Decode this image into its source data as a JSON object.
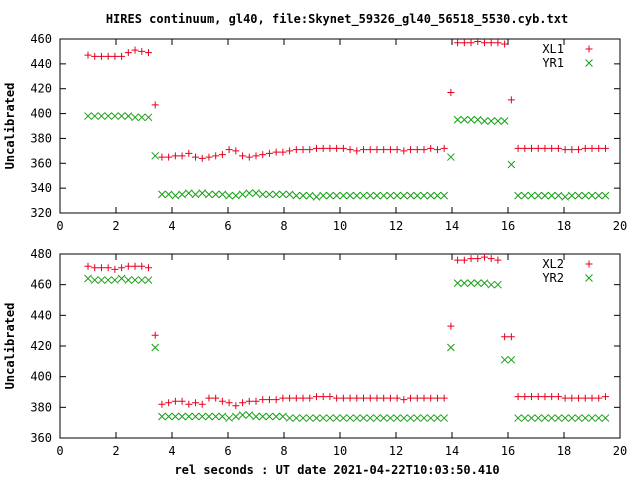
{
  "title": "HIRES continuum, gl40, file:Skynet_59326_gl40_56518_5530.cyb.txt",
  "xlabel": "rel seconds : UT date 2021-04-22T10:03:50.410",
  "colors": {
    "series_plus": "#e8001c",
    "series_cross": "#16a016",
    "axis": "#000000"
  },
  "chart_data": [
    {
      "type": "scatter",
      "ylabel": "Uncalibrated",
      "xlim": [
        0,
        20
      ],
      "ylim": [
        320,
        460
      ],
      "xticks": [
        0,
        2,
        4,
        6,
        8,
        10,
        12,
        14,
        16,
        18,
        20
      ],
      "yticks": [
        320,
        340,
        360,
        380,
        400,
        420,
        440,
        460
      ],
      "legend_position": "top-right",
      "series": [
        {
          "name": "XL1",
          "marker": "plus",
          "x": [
            1.0,
            1.24,
            1.48,
            1.72,
            1.96,
            2.2,
            2.44,
            2.68,
            2.92,
            3.16,
            3.4,
            3.64,
            3.88,
            4.12,
            4.36,
            4.6,
            4.84,
            5.08,
            5.32,
            5.56,
            5.8,
            6.04,
            6.28,
            6.52,
            6.76,
            7.0,
            7.24,
            7.48,
            7.72,
            7.96,
            8.2,
            8.44,
            8.68,
            8.92,
            9.16,
            9.4,
            9.64,
            9.88,
            10.12,
            10.36,
            10.6,
            10.84,
            11.08,
            11.32,
            11.56,
            11.8,
            12.04,
            12.28,
            12.52,
            12.76,
            13.0,
            13.24,
            13.48,
            13.72,
            13.96,
            14.2,
            14.44,
            14.68,
            14.92,
            15.16,
            15.4,
            15.64,
            15.88,
            16.12,
            16.36,
            16.6,
            16.84,
            17.08,
            17.32,
            17.56,
            17.8,
            18.04,
            18.28,
            18.52,
            18.76,
            19.0,
            19.24,
            19.48
          ],
          "y": [
            447,
            446,
            446,
            446,
            446,
            446,
            449,
            451,
            450,
            449,
            407,
            365,
            365,
            366,
            366,
            368,
            365,
            364,
            365,
            366,
            367,
            371,
            370,
            366,
            365,
            366,
            367,
            368,
            369,
            369,
            370,
            371,
            371,
            371,
            372,
            372,
            372,
            372,
            372,
            371,
            370,
            371,
            371,
            371,
            371,
            371,
            371,
            370,
            371,
            371,
            371,
            372,
            371,
            372,
            417,
            457,
            457,
            457,
            458,
            457,
            457,
            457,
            456,
            411,
            372,
            372,
            372,
            372,
            372,
            372,
            372,
            371,
            371,
            371,
            372,
            372,
            372,
            372
          ]
        },
        {
          "name": "YR1",
          "marker": "cross",
          "x": [
            1.0,
            1.24,
            1.48,
            1.72,
            1.96,
            2.2,
            2.44,
            2.68,
            2.92,
            3.16,
            3.4,
            3.64,
            3.88,
            4.12,
            4.36,
            4.6,
            4.84,
            5.08,
            5.32,
            5.56,
            5.8,
            6.04,
            6.28,
            6.52,
            6.76,
            7.0,
            7.24,
            7.48,
            7.72,
            7.96,
            8.2,
            8.44,
            8.68,
            8.92,
            9.16,
            9.4,
            9.64,
            9.88,
            10.12,
            10.36,
            10.6,
            10.84,
            11.08,
            11.32,
            11.56,
            11.8,
            12.04,
            12.28,
            12.52,
            12.76,
            13.0,
            13.24,
            13.48,
            13.72,
            13.96,
            14.2,
            14.44,
            14.68,
            14.92,
            15.16,
            15.4,
            15.64,
            15.88,
            16.12,
            16.36,
            16.6,
            16.84,
            17.08,
            17.32,
            17.56,
            17.8,
            18.04,
            18.28,
            18.52,
            18.76,
            19.0,
            19.24,
            19.48
          ],
          "y": [
            398,
            398,
            398,
            398,
            398,
            398,
            398,
            397,
            397,
            397,
            366,
            335,
            335,
            334,
            335,
            336,
            335,
            336,
            335,
            335,
            335,
            334,
            334,
            335,
            336,
            336,
            335,
            335,
            335,
            335,
            335,
            334,
            334,
            334,
            333,
            334,
            334,
            334,
            334,
            334,
            334,
            334,
            334,
            334,
            334,
            334,
            334,
            334,
            334,
            334,
            334,
            334,
            334,
            334,
            365,
            395,
            395,
            395,
            395,
            394,
            394,
            394,
            394,
            359,
            334,
            334,
            334,
            334,
            334,
            334,
            334,
            333,
            334,
            334,
            334,
            334,
            334,
            334
          ]
        }
      ]
    },
    {
      "type": "scatter",
      "ylabel": "Uncalibrated",
      "xlim": [
        0,
        20
      ],
      "ylim": [
        360,
        480
      ],
      "xticks": [
        0,
        2,
        4,
        6,
        8,
        10,
        12,
        14,
        16,
        18,
        20
      ],
      "yticks": [
        360,
        380,
        400,
        420,
        440,
        460,
        480
      ],
      "legend_position": "top-right",
      "series": [
        {
          "name": "XL2",
          "marker": "plus",
          "x": [
            1.0,
            1.24,
            1.48,
            1.72,
            1.96,
            2.2,
            2.44,
            2.68,
            2.92,
            3.16,
            3.4,
            3.64,
            3.88,
            4.12,
            4.36,
            4.6,
            4.84,
            5.08,
            5.32,
            5.56,
            5.8,
            6.04,
            6.28,
            6.52,
            6.76,
            7.0,
            7.24,
            7.48,
            7.72,
            7.96,
            8.2,
            8.44,
            8.68,
            8.92,
            9.16,
            9.4,
            9.64,
            9.88,
            10.12,
            10.36,
            10.6,
            10.84,
            11.08,
            11.32,
            11.56,
            11.8,
            12.04,
            12.28,
            12.52,
            12.76,
            13.0,
            13.24,
            13.48,
            13.72,
            13.96,
            14.2,
            14.44,
            14.68,
            14.92,
            15.16,
            15.4,
            15.64,
            15.88,
            16.12,
            16.36,
            16.6,
            16.84,
            17.08,
            17.32,
            17.56,
            17.8,
            18.04,
            18.28,
            18.52,
            18.76,
            19.0,
            19.24,
            19.48
          ],
          "y": [
            472,
            471,
            471,
            471,
            470,
            471,
            472,
            472,
            472,
            471,
            427,
            382,
            383,
            384,
            384,
            382,
            383,
            382,
            386,
            386,
            384,
            383,
            381,
            383,
            384,
            384,
            385,
            385,
            385,
            386,
            386,
            386,
            386,
            386,
            387,
            387,
            387,
            386,
            386,
            386,
            386,
            386,
            386,
            386,
            386,
            386,
            386,
            385,
            386,
            386,
            386,
            386,
            386,
            386,
            433,
            476,
            476,
            477,
            477,
            478,
            477,
            476,
            426,
            426,
            387,
            387,
            387,
            387,
            387,
            387,
            387,
            386,
            386,
            386,
            386,
            386,
            386,
            387
          ]
        },
        {
          "name": "YR2",
          "marker": "cross",
          "x": [
            1.0,
            1.24,
            1.48,
            1.72,
            1.96,
            2.2,
            2.44,
            2.68,
            2.92,
            3.16,
            3.4,
            3.64,
            3.88,
            4.12,
            4.36,
            4.6,
            4.84,
            5.08,
            5.32,
            5.56,
            5.8,
            6.04,
            6.28,
            6.52,
            6.76,
            7.0,
            7.24,
            7.48,
            7.72,
            7.96,
            8.2,
            8.44,
            8.68,
            8.92,
            9.16,
            9.4,
            9.64,
            9.88,
            10.12,
            10.36,
            10.6,
            10.84,
            11.08,
            11.32,
            11.56,
            11.8,
            12.04,
            12.28,
            12.52,
            12.76,
            13.0,
            13.24,
            13.48,
            13.72,
            13.96,
            14.2,
            14.44,
            14.68,
            14.92,
            15.16,
            15.4,
            15.64,
            15.88,
            16.12,
            16.36,
            16.6,
            16.84,
            17.08,
            17.32,
            17.56,
            17.8,
            18.04,
            18.28,
            18.52,
            18.76,
            19.0,
            19.24,
            19.48
          ],
          "y": [
            464,
            463,
            463,
            463,
            463,
            464,
            463,
            463,
            463,
            463,
            419,
            374,
            374,
            374,
            374,
            374,
            374,
            374,
            374,
            374,
            374,
            373,
            374,
            375,
            375,
            374,
            374,
            374,
            374,
            374,
            373,
            373,
            373,
            373,
            373,
            373,
            373,
            373,
            373,
            373,
            373,
            373,
            373,
            373,
            373,
            373,
            373,
            373,
            373,
            373,
            373,
            373,
            373,
            373,
            419,
            461,
            461,
            461,
            461,
            461,
            460,
            460,
            411,
            411,
            373,
            373,
            373,
            373,
            373,
            373,
            373,
            373,
            373,
            373,
            373,
            373,
            373,
            373
          ]
        }
      ]
    }
  ]
}
